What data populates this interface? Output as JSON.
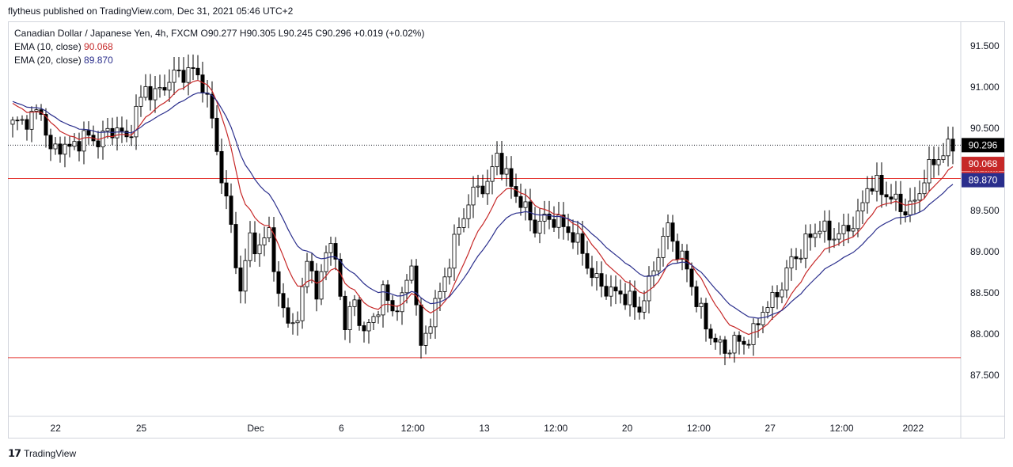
{
  "header": {
    "published": "flytheus published on TradingView.com, Dec 31, 2021 05:46 UTC+2"
  },
  "legend": {
    "symbol": "Canadian Dollar / Japanese Yen, 4h, FXCM",
    "o_label": "O",
    "o": "90.277",
    "h_label": "H",
    "h": "90.305",
    "l_label": "L",
    "l": "90.245",
    "c_label": "C",
    "c": "90.296",
    "change": "+0.019 (+0.02%)",
    "ema10_label": "EMA (10, close)",
    "ema10": "90.068",
    "ema20_label": "EMA (20, close)",
    "ema20": "89.870"
  },
  "footer": {
    "brand": "TradingView"
  },
  "colors": {
    "ema10": "#c62828",
    "ema20": "#2a2e8c",
    "hline": "#e53935",
    "candle_up": "#ffffff",
    "candle_down": "#000000"
  },
  "chart_data": {
    "type": "candlestick",
    "ylim": [
      87.0,
      91.8
    ],
    "y_ticks": [
      "91.500",
      "91.000",
      "90.500",
      "90.000",
      "89.500",
      "89.000",
      "88.500",
      "88.000",
      "87.500"
    ],
    "x_ticks": [
      {
        "label": "22",
        "x": 0.05
      },
      {
        "label": "25",
        "x": 0.14
      },
      {
        "label": "Dec",
        "x": 0.26
      },
      {
        "label": "6",
        "x": 0.35
      },
      {
        "label": "12:00",
        "x": 0.425
      },
      {
        "label": "13",
        "x": 0.5
      },
      {
        "label": "12:00",
        "x": 0.575
      },
      {
        "label": "20",
        "x": 0.65
      },
      {
        "label": "12:00",
        "x": 0.725
      },
      {
        "label": "27",
        "x": 0.8
      },
      {
        "label": "12:00",
        "x": 0.875
      },
      {
        "label": "2022",
        "x": 0.95
      }
    ],
    "horizontal_lines": [
      89.891,
      87.713
    ],
    "last_price": 90.296,
    "price_labels": [
      {
        "text": "90.296",
        "value": 90.296,
        "bg": "#000000"
      },
      {
        "text": "90.068",
        "value": 90.068,
        "bg": "#c62828"
      },
      {
        "text": "89.891",
        "value": 89.891,
        "bg": "#e53935"
      },
      {
        "text": "89.870",
        "value": 89.87,
        "bg": "#2a2e8c"
      }
    ],
    "close_path": [
      [
        0,
        90.55
      ],
      [
        3,
        90.6
      ],
      [
        6,
        90.72
      ],
      [
        8,
        90.2
      ],
      [
        10,
        90.3
      ],
      [
        12,
        90.25
      ],
      [
        15,
        90.4
      ],
      [
        18,
        90.35
      ],
      [
        20,
        90.45
      ],
      [
        22,
        90.5
      ],
      [
        24,
        90.35
      ],
      [
        26,
        90.7
      ],
      [
        28,
        91.0
      ],
      [
        30,
        90.9
      ],
      [
        34,
        91.15
      ],
      [
        38,
        91.2
      ],
      [
        40,
        91.05
      ],
      [
        42,
        90.6
      ],
      [
        44,
        89.9
      ],
      [
        46,
        89.3
      ],
      [
        48,
        88.5
      ],
      [
        50,
        89.2
      ],
      [
        52,
        89.0
      ],
      [
        54,
        89.3
      ],
      [
        56,
        88.4
      ],
      [
        58,
        88.2
      ],
      [
        60,
        88.1
      ],
      [
        62,
        89.0
      ],
      [
        64,
        88.4
      ],
      [
        66,
        89.1
      ],
      [
        68,
        88.9
      ],
      [
        70,
        88.1
      ],
      [
        72,
        88.4
      ],
      [
        74,
        88.0
      ],
      [
        76,
        88.2
      ],
      [
        78,
        88.5
      ],
      [
        80,
        88.3
      ],
      [
        82,
        88.4
      ],
      [
        84,
        88.9
      ],
      [
        86,
        87.8
      ],
      [
        88,
        88.2
      ],
      [
        90,
        88.5
      ],
      [
        92,
        88.9
      ],
      [
        94,
        89.3
      ],
      [
        96,
        89.6
      ],
      [
        98,
        89.8
      ],
      [
        100,
        89.8
      ],
      [
        102,
        90.2
      ],
      [
        104,
        89.9
      ],
      [
        106,
        89.7
      ],
      [
        108,
        89.5
      ],
      [
        110,
        89.3
      ],
      [
        112,
        89.4
      ],
      [
        114,
        89.4
      ],
      [
        116,
        89.3
      ],
      [
        118,
        89.2
      ],
      [
        120,
        89.0
      ],
      [
        122,
        88.7
      ],
      [
        124,
        88.6
      ],
      [
        126,
        88.5
      ],
      [
        128,
        88.5
      ],
      [
        130,
        88.4
      ],
      [
        132,
        88.3
      ],
      [
        134,
        88.6
      ],
      [
        136,
        89.0
      ],
      [
        138,
        89.3
      ],
      [
        140,
        89.0
      ],
      [
        142,
        88.8
      ],
      [
        144,
        88.4
      ],
      [
        146,
        88.1
      ],
      [
        148,
        87.9
      ],
      [
        150,
        87.8
      ],
      [
        152,
        87.9
      ],
      [
        154,
        87.9
      ],
      [
        156,
        88.0
      ],
      [
        158,
        88.3
      ],
      [
        160,
        88.4
      ],
      [
        162,
        88.6
      ],
      [
        164,
        88.9
      ],
      [
        166,
        89.0
      ],
      [
        168,
        89.2
      ],
      [
        170,
        89.3
      ],
      [
        172,
        89.2
      ],
      [
        174,
        89.2
      ],
      [
        176,
        89.3
      ],
      [
        178,
        89.4
      ],
      [
        180,
        89.8
      ],
      [
        182,
        89.8
      ],
      [
        184,
        89.7
      ],
      [
        186,
        89.6
      ],
      [
        188,
        89.5
      ],
      [
        190,
        89.6
      ],
      [
        192,
        89.9
      ],
      [
        194,
        90.1
      ],
      [
        196,
        90.2
      ],
      [
        198,
        90.296
      ]
    ]
  }
}
